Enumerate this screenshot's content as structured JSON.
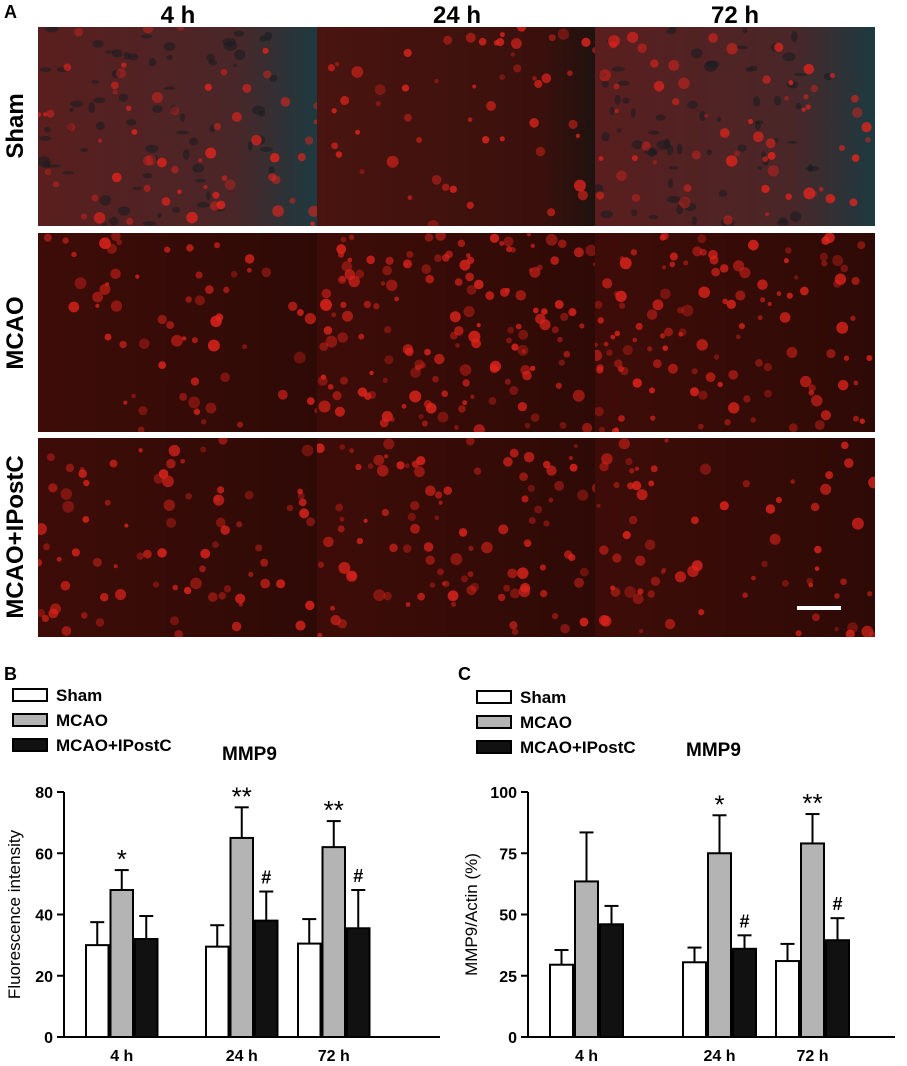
{
  "panelA": {
    "letter": "A",
    "columns": [
      "4 h",
      "24 h",
      "72 h"
    ],
    "rows": [
      "Sham",
      "MCAO",
      "MCAO+IPostC"
    ]
  },
  "legend": {
    "items": [
      {
        "label": "Sham",
        "fill": "#ffffff"
      },
      {
        "label": "MCAO",
        "fill": "#b4b4b4"
      },
      {
        "label": "MCAO+IPostC",
        "fill": "#111111"
      }
    ]
  },
  "colors": {
    "sham": "#ffffff",
    "mcao": "#b4b4b4",
    "ipostc": "#111111",
    "micrograph_base": "#3e0c08",
    "micrograph_cell": "#e0241c"
  },
  "chart_data": [
    {
      "panel": "B",
      "type": "bar",
      "title": "MMP9",
      "xlabel": "",
      "ylabel": "Fluorescence intensity",
      "ylim": [
        0,
        80
      ],
      "yticks": [
        0,
        20,
        40,
        60,
        80
      ],
      "categories": [
        "4 h",
        "24 h",
        "72 h"
      ],
      "series": [
        {
          "name": "Sham",
          "values": [
            30,
            29.5,
            30.5
          ],
          "errors": [
            7.5,
            7,
            8
          ]
        },
        {
          "name": "MCAO",
          "values": [
            48,
            65,
            62
          ],
          "errors": [
            6.5,
            10,
            8.5
          ]
        },
        {
          "name": "MCAO+IPostC",
          "values": [
            32,
            38,
            35.5
          ],
          "errors": [
            7.5,
            9.5,
            12.5
          ]
        }
      ],
      "annotations": [
        {
          "category": "4 h",
          "series": "MCAO",
          "text": "*"
        },
        {
          "category": "24 h",
          "series": "MCAO",
          "text": "**"
        },
        {
          "category": "24 h",
          "series": "MCAO+IPostC",
          "text": "#"
        },
        {
          "category": "72 h",
          "series": "MCAO",
          "text": "**"
        },
        {
          "category": "72 h",
          "series": "MCAO+IPostC",
          "text": "#"
        }
      ]
    },
    {
      "panel": "C",
      "type": "bar",
      "title": "MMP9",
      "xlabel": "",
      "ylabel": "MMP9/Actin (%)",
      "ylim": [
        0,
        100
      ],
      "yticks": [
        0,
        25,
        50,
        75,
        100
      ],
      "categories": [
        "4 h",
        "24 h",
        "72 h"
      ],
      "series": [
        {
          "name": "Sham",
          "values": [
            29.5,
            30.5,
            31
          ],
          "errors": [
            6,
            6,
            7
          ]
        },
        {
          "name": "MCAO",
          "values": [
            63.5,
            75,
            79
          ],
          "errors": [
            20,
            15.5,
            12
          ]
        },
        {
          "name": "MCAO+IPostC",
          "values": [
            46,
            36,
            39.5
          ],
          "errors": [
            7.5,
            5.5,
            9
          ]
        }
      ],
      "annotations": [
        {
          "category": "24 h",
          "series": "MCAO",
          "text": "*"
        },
        {
          "category": "24 h",
          "series": "MCAO+IPostC",
          "text": "#"
        },
        {
          "category": "72 h",
          "series": "MCAO",
          "text": "**"
        },
        {
          "category": "72 h",
          "series": "MCAO+IPostC",
          "text": "#"
        }
      ]
    }
  ]
}
